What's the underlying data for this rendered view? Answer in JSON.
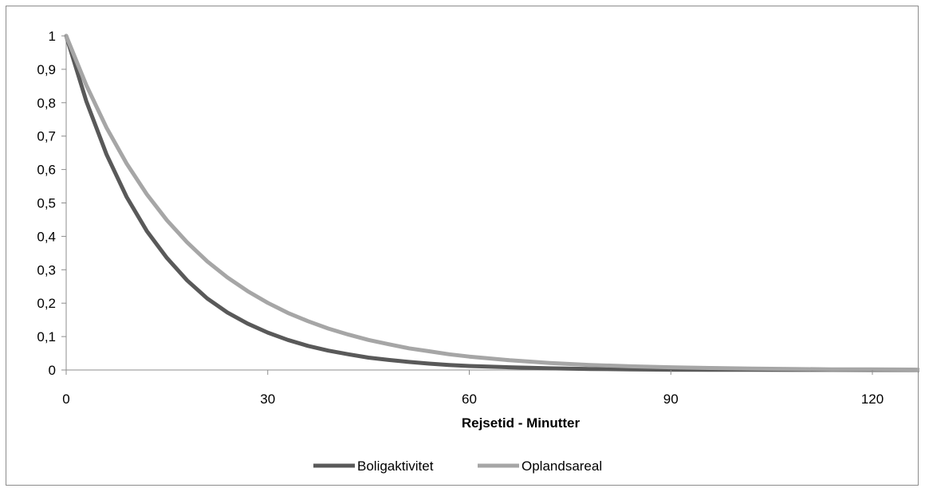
{
  "chart_data": {
    "type": "line",
    "title": "",
    "xlabel": "Rejsetid - Minutter",
    "ylabel": "",
    "xlim": [
      0,
      127
    ],
    "ylim": [
      0,
      1
    ],
    "x_ticks": [
      "0",
      "30",
      "60",
      "90",
      "120"
    ],
    "y_ticks": [
      "0",
      "0,1",
      "0,2",
      "0,3",
      "0,4",
      "0,5",
      "0,6",
      "0,7",
      "0,8",
      "0,9",
      "1"
    ],
    "grid": false,
    "legend_position": "bottom",
    "x": [
      0,
      3,
      6,
      9,
      12,
      15,
      18,
      21,
      24,
      27,
      30,
      33,
      36,
      39,
      42,
      45,
      48,
      51,
      54,
      57,
      60,
      66,
      72,
      78,
      84,
      90,
      96,
      102,
      108,
      114,
      120,
      127
    ],
    "series": [
      {
        "name": "Boligaktivitet",
        "color": "#595959",
        "values": [
          1.0,
          0.804,
          0.645,
          0.518,
          0.416,
          0.335,
          0.268,
          0.214,
          0.172,
          0.139,
          0.112,
          0.09,
          0.072,
          0.058,
          0.047,
          0.037,
          0.03,
          0.024,
          0.019,
          0.015,
          0.012,
          0.008,
          0.005,
          0.003,
          0.002,
          0.001,
          0.0007,
          0.0004,
          0.0003,
          0.0002,
          0.0001,
          0.0001
        ]
      },
      {
        "name": "Oplandsareal",
        "color": "#a6a6a6",
        "values": [
          1.0,
          0.852,
          0.725,
          0.618,
          0.526,
          0.448,
          0.382,
          0.325,
          0.277,
          0.236,
          0.201,
          0.171,
          0.146,
          0.124,
          0.106,
          0.09,
          0.077,
          0.065,
          0.056,
          0.047,
          0.04,
          0.029,
          0.021,
          0.015,
          0.011,
          0.008,
          0.006,
          0.004,
          0.003,
          0.002,
          0.002,
          0.001
        ]
      }
    ]
  }
}
